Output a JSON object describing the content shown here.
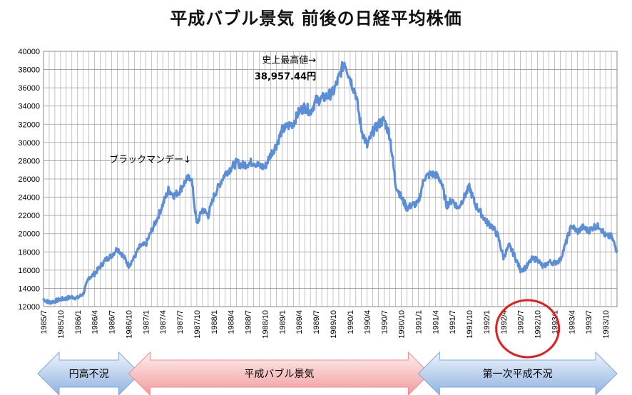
{
  "colors": {
    "line": "#5B8ED6",
    "grid": "#9c9c9c",
    "circle": "#e02020",
    "arrow_blue_light": "#ddeaf8",
    "arrow_blue_dark": "#7fa8dc",
    "arrow_red_light": "#fde3e3",
    "arrow_red_dark": "#f08c8c"
  },
  "chart_data": {
    "type": "line",
    "title": "平成バブル景気 前後の日経平均株価",
    "xlabel": "",
    "ylabel": "",
    "ylim": [
      12000,
      40000
    ],
    "ytick_step": 2000,
    "y_ticks": [
      "12000",
      "14000",
      "16000",
      "18000",
      "20000",
      "22000",
      "24000",
      "26000",
      "28000",
      "30000",
      "32000",
      "34000",
      "36000",
      "38000",
      "40000"
    ],
    "x_range": [
      "1985-07",
      "1993-12"
    ],
    "x_ticks": [
      "1985/7",
      "1985/10",
      "1986/1",
      "1986/4",
      "1986/7",
      "1986/10",
      "1987/1",
      "1987/4",
      "1987/7",
      "1987/10",
      "1988/1",
      "1988/4",
      "1988/7",
      "1988/10",
      "1989/1",
      "1989/4",
      "1989/7",
      "1989/10",
      "1990/1",
      "1990/4",
      "1990/7",
      "1990/10",
      "1991/1",
      "1991/4",
      "1991/7",
      "1991/10",
      "1992/1",
      "1992/4",
      "1992/7",
      "1992/10",
      "1993/1",
      "1993/4",
      "1993/7",
      "1993/10"
    ],
    "grid": true,
    "legend": "none",
    "series": [
      {
        "x": [
          "1985-07",
          "1985-08",
          "1985-09",
          "1985-10",
          "1985-11",
          "1985-12",
          "1986-01",
          "1986-02",
          "1986-03",
          "1986-04",
          "1986-05",
          "1986-06",
          "1986-07",
          "1986-08",
          "1986-09",
          "1986-10",
          "1986-11",
          "1986-12",
          "1987-01",
          "1987-02",
          "1987-03",
          "1987-04",
          "1987-05",
          "1987-06",
          "1987-07",
          "1987-08",
          "1987-09",
          "1987-10",
          "1987-11",
          "1987-12",
          "1988-01",
          "1988-02",
          "1988-03",
          "1988-04",
          "1988-05",
          "1988-06",
          "1988-07",
          "1988-08",
          "1988-09",
          "1988-10",
          "1988-11",
          "1988-12",
          "1989-01",
          "1989-02",
          "1989-03",
          "1989-04",
          "1989-05",
          "1989-06",
          "1989-07",
          "1989-08",
          "1989-09",
          "1989-10",
          "1989-11",
          "1989-12",
          "1990-01",
          "1990-02",
          "1990-03",
          "1990-04",
          "1990-05",
          "1990-06",
          "1990-07",
          "1990-08",
          "1990-09",
          "1990-10",
          "1990-11",
          "1990-12",
          "1991-01",
          "1991-02",
          "1991-03",
          "1991-04",
          "1991-05",
          "1991-06",
          "1991-07",
          "1991-08",
          "1991-09",
          "1991-10",
          "1991-11",
          "1991-12",
          "1992-01",
          "1992-02",
          "1992-03",
          "1992-04",
          "1992-05",
          "1992-06",
          "1992-07",
          "1992-08",
          "1992-09",
          "1992-10",
          "1992-11",
          "1992-12",
          "1993-01",
          "1993-02",
          "1993-03",
          "1993-04",
          "1993-05",
          "1993-06",
          "1993-07",
          "1993-08",
          "1993-09",
          "1993-10",
          "1993-11",
          "1993-12"
        ],
        "y": [
          12800,
          12450,
          12600,
          12800,
          12900,
          13050,
          12950,
          13400,
          15200,
          15600,
          16400,
          17200,
          17600,
          18400,
          17600,
          16500,
          17400,
          18600,
          18800,
          20300,
          21600,
          23200,
          24800,
          24200,
          24700,
          25800,
          26300,
          21000,
          22700,
          22000,
          24100,
          25400,
          26600,
          27200,
          27800,
          27500,
          27700,
          27900,
          27400,
          27300,
          28700,
          29700,
          31300,
          31800,
          32100,
          33400,
          33900,
          33400,
          34600,
          34800,
          35100,
          35500,
          37100,
          38900,
          37000,
          35300,
          31400,
          29600,
          31200,
          32000,
          32500,
          30700,
          25400,
          24000,
          22800,
          23200,
          23300,
          26100,
          26500,
          26500,
          25800,
          23100,
          23700,
          22800,
          23900,
          25100,
          23200,
          22300,
          21300,
          20800,
          19800,
          17400,
          18700,
          17500,
          16000,
          16300,
          17200,
          17200,
          16300,
          16900,
          16800,
          17100,
          19000,
          20900,
          20200,
          20700,
          20300,
          20800,
          20800,
          19700,
          19700,
          18100
        ]
      }
    ],
    "annotations": [
      {
        "text": "ブラックマンデー↓",
        "x": "1987-09",
        "y": 28200
      },
      {
        "text": "史上最高値→",
        "x": "1989-07",
        "y": 39100
      },
      {
        "text": "38,957.44円",
        "x": "1989-07",
        "y": 37300
      }
    ],
    "periods": [
      {
        "label": "円高不況",
        "start": "1985-07",
        "end": "1986-11",
        "color": "blue"
      },
      {
        "label": "平成バブル景気",
        "start": "1986-11",
        "end": "1991-02",
        "color": "red"
      },
      {
        "label": "第一次平成不況",
        "start": "1991-02",
        "end": "1993-12",
        "color": "blue"
      }
    ],
    "highlight": {
      "shape": "circle",
      "x": "1992-08"
    }
  }
}
